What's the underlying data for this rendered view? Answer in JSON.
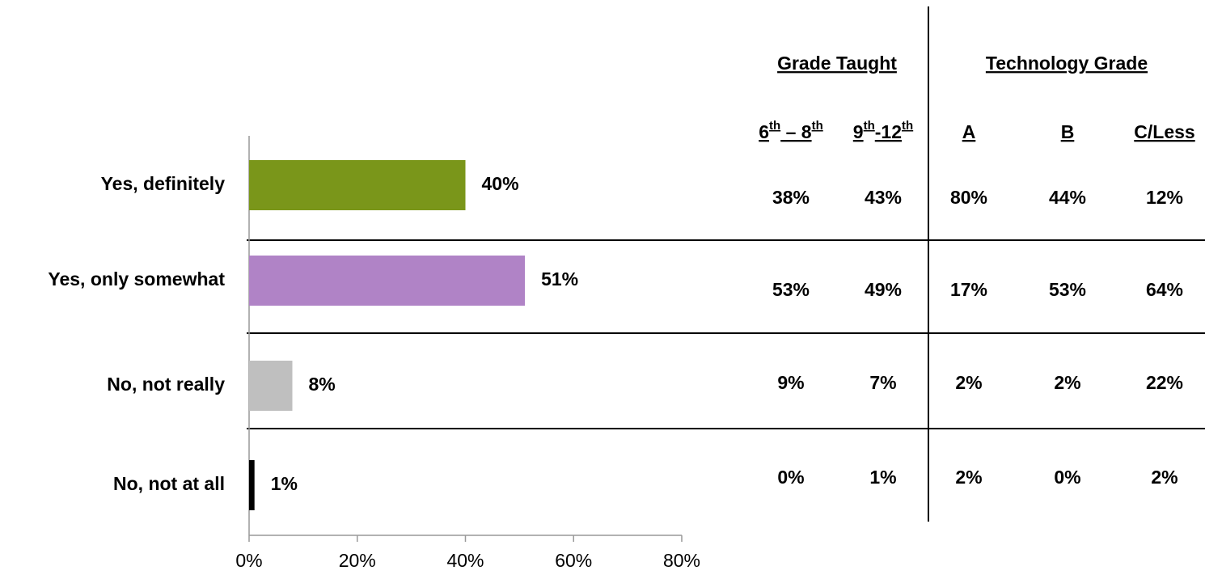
{
  "chart_data": {
    "type": "bar",
    "orientation": "horizontal",
    "categories": [
      "Yes, definitely",
      "Yes, only somewhat",
      "No, not really",
      "No, not at all"
    ],
    "values": [
      40,
      51,
      8,
      1
    ],
    "value_labels": [
      "40%",
      "51%",
      "8%",
      "1%"
    ],
    "colors": [
      "#7a961a",
      "#b083c6",
      "#bfbfbf",
      "#000000"
    ],
    "xlim": [
      0,
      80
    ],
    "xticks": [
      {
        "value": 0,
        "label": "0%"
      },
      {
        "value": 20,
        "label": "20%"
      },
      {
        "value": 40,
        "label": "40%"
      },
      {
        "value": 60,
        "label": "60%"
      },
      {
        "value": 80,
        "label": "80%"
      }
    ]
  },
  "table": {
    "groups": [
      {
        "title": "Grade Taught",
        "span": 2
      },
      {
        "title": "Technology Grade",
        "span": 3
      }
    ],
    "columns": [
      [
        {
          "t": "6"
        },
        {
          "sup": "th"
        },
        {
          "t": " – 8"
        },
        {
          "sup": "th"
        }
      ],
      [
        {
          "t": "9"
        },
        {
          "sup": "th"
        },
        {
          "t": "-12"
        },
        {
          "sup": "th"
        }
      ],
      [
        {
          "t": "A"
        }
      ],
      [
        {
          "t": "B"
        }
      ],
      [
        {
          "t": "C/Less"
        }
      ]
    ],
    "rows": [
      [
        "38%",
        "43%",
        "80%",
        "44%",
        "12%"
      ],
      [
        "53%",
        "49%",
        "17%",
        "53%",
        "64%"
      ],
      [
        "9%",
        "7%",
        "2%",
        "2%",
        "22%"
      ],
      [
        "0%",
        "1%",
        "2%",
        "0%",
        "2%"
      ]
    ],
    "highlight": [
      [
        false,
        false,
        true,
        false,
        false
      ],
      [
        false,
        false,
        false,
        true,
        true
      ],
      [
        false,
        false,
        false,
        false,
        true
      ],
      [
        false,
        false,
        false,
        false,
        false
      ]
    ],
    "highlight_color": "#ff0000"
  }
}
